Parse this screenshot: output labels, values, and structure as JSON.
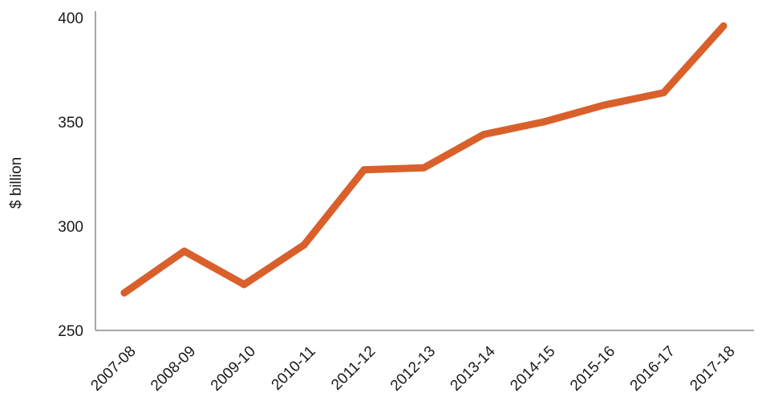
{
  "chart_data": {
    "type": "line",
    "title": "",
    "xlabel": "",
    "ylabel": "$ billion",
    "categories": [
      "2007-08",
      "2008-09",
      "2009-10",
      "2010-11",
      "2011-12",
      "2012-13",
      "2013-14",
      "2014-15",
      "2015-16",
      "2016-17",
      "2017-18"
    ],
    "series": [
      {
        "values": [
          268,
          288,
          272,
          291,
          327,
          328,
          344,
          350,
          358,
          364,
          396
        ]
      }
    ],
    "ylim": [
      250,
      400
    ],
    "yticks": [
      250,
      300,
      350,
      400
    ],
    "grid": false,
    "line_color": "#d9602b",
    "axis_color": "#a6a6a6"
  }
}
